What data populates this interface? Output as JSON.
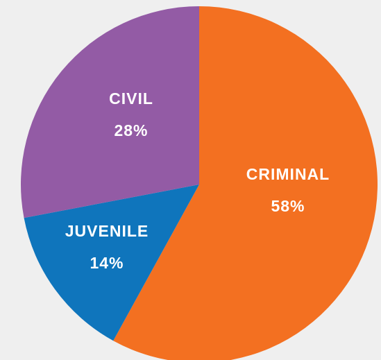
{
  "chart_data": {
    "type": "pie",
    "title": "",
    "start_angle_deg": 0,
    "direction": "clockwise",
    "slices": [
      {
        "name": "CRIMINAL",
        "value": 58,
        "value_label": "58%",
        "color": "#f37021"
      },
      {
        "name": "JUVENILE",
        "value": 14,
        "value_label": "14%",
        "color": "#0f75bc"
      },
      {
        "name": "CIVIL",
        "value": 28,
        "value_label": "28%",
        "color": "#935ba5"
      }
    ]
  }
}
